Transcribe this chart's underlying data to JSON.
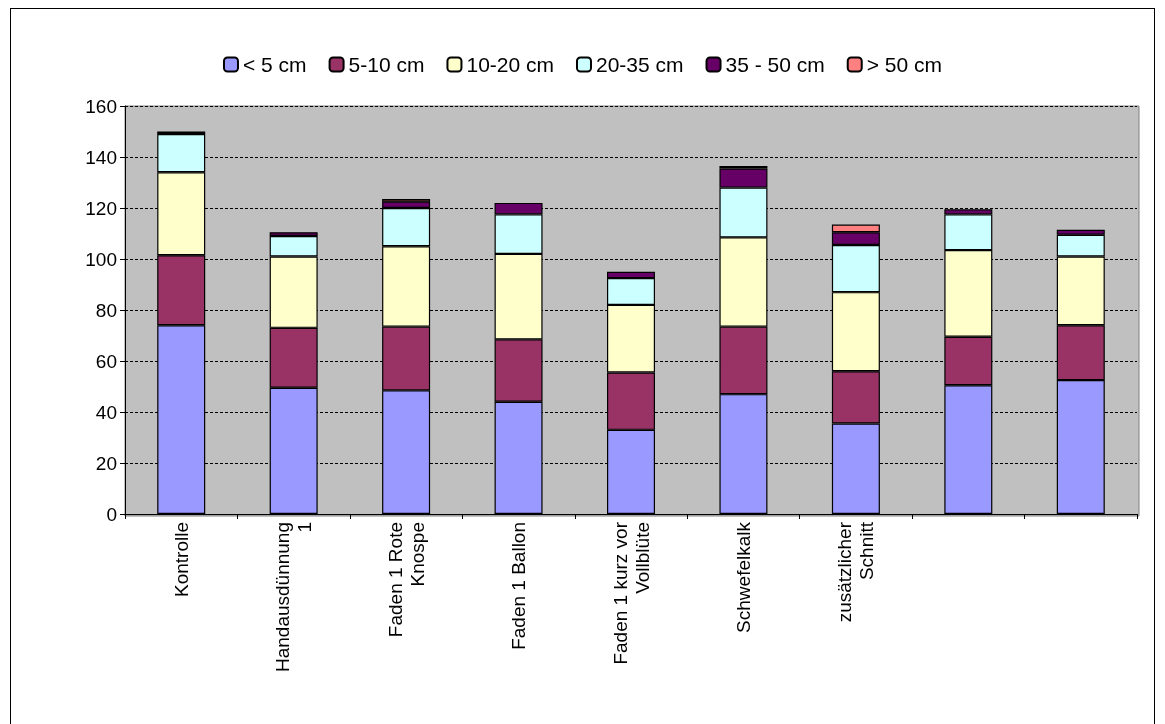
{
  "chart_data": {
    "type": "bar",
    "stacked": true,
    "categories": [
      "Kontrolle",
      "Handausdünnung\n1",
      "Faden 1 Rote\nKnospe",
      "Faden 1 Ballon",
      "Faden 1 kurz vor\nVollblüte",
      "Schwefelkalk",
      "zusätzlicher\nSchnitt",
      null,
      null
    ],
    "series": [
      {
        "name": "< 5 cm",
        "color": "#9999ff",
        "values": [
          74,
          49.5,
          48.5,
          44,
          33,
          47,
          35.5,
          50.5,
          52.5
        ]
      },
      {
        "name": "5-10 cm",
        "color": "#993366",
        "values": [
          27.5,
          23.5,
          25,
          24.5,
          22.5,
          26.5,
          20.5,
          19,
          21.5
        ]
      },
      {
        "name": "10-20 cm",
        "color": "#ffffcc",
        "values": [
          32.5,
          28,
          31.5,
          33.5,
          26.5,
          35,
          31,
          34,
          27
        ]
      },
      {
        "name": "20-35 cm",
        "color": "#ccffff",
        "values": [
          15,
          8,
          15,
          15.5,
          10.5,
          19.5,
          18.5,
          14,
          8.5
        ]
      },
      {
        "name": "35 - 50 cm",
        "color": "#660066",
        "values": [
          1,
          1.5,
          2.5,
          4.5,
          2.5,
          7.5,
          5,
          2,
          2
        ]
      },
      {
        "name": "> 50 cm",
        "color": "#ff8080",
        "values": [
          null,
          null,
          1,
          null,
          null,
          1,
          3,
          null,
          null
        ]
      }
    ],
    "ylim": [
      0,
      160
    ],
    "yticks": [
      0,
      20,
      40,
      60,
      80,
      100,
      120,
      140,
      160
    ],
    "grid": "y",
    "legend": "top"
  }
}
